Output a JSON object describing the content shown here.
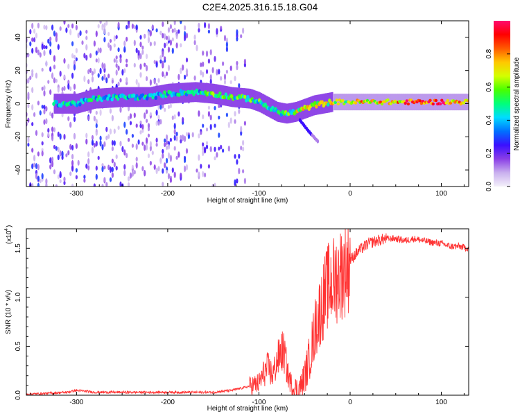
{
  "title": "C2E4.2025.316.15.18.G04",
  "chart_data": [
    {
      "type": "heatmap",
      "name": "spectrogram",
      "xlabel": "Height of straight line (km)",
      "ylabel": "Frequency (Hz)",
      "xlim": [
        -355,
        130
      ],
      "ylim": [
        -50,
        50
      ],
      "xticks": [
        -300,
        -200,
        -100,
        0,
        100
      ],
      "xtick_labels": [
        "-300",
        "-200",
        "-100",
        "0",
        "100"
      ],
      "yticks": [
        -40,
        -20,
        0,
        20,
        40
      ],
      "ytick_labels": [
        "-40",
        "-20",
        "0",
        "20",
        "40"
      ],
      "main_ridge": {
        "x": [
          -320,
          -300,
          -280,
          -250,
          -220,
          -200,
          -170,
          -150,
          -130,
          -110,
          -100,
          -90,
          -80,
          -70,
          -60,
          -50,
          -40,
          -30,
          -20,
          -10,
          0,
          20,
          40,
          60,
          80,
          100,
          120,
          130
        ],
        "y": [
          0,
          0,
          3,
          4,
          4,
          6,
          7,
          6,
          4,
          3,
          1,
          -2,
          -5,
          -6,
          -5,
          -3,
          -1,
          0,
          1,
          1,
          1,
          1,
          1,
          1,
          1,
          1,
          1,
          1
        ]
      },
      "secondary_branch": {
        "x": [
          -55,
          -45,
          -35
        ],
        "y": [
          -10,
          -17,
          -23
        ]
      },
      "colorbar": {
        "label": "Normalized spectral amplitude",
        "range": [
          0,
          1
        ],
        "ticks": [
          0.0,
          0.2,
          0.4,
          0.6,
          0.8
        ],
        "tick_labels": [
          "0.0",
          "0.2",
          "0.4",
          "0.6",
          "0.8"
        ],
        "colormap": [
          "#f4f0fa",
          "#c9b0ee",
          "#8a3ee6",
          "#3a10ff",
          "#0070ff",
          "#00dcff",
          "#00ff7a",
          "#48ff00",
          "#d4ff00",
          "#ffc800",
          "#ff5a00",
          "#ff0000",
          "#ff0a6e"
        ]
      }
    },
    {
      "type": "line",
      "name": "snr",
      "xlabel": "Height of straight line (km)",
      "ylabel": "SNR (10 * v/v)",
      "multiplier_label": "(x10",
      "multiplier_exponent": "4",
      "xlim": [
        -355,
        130
      ],
      "ylim": [
        0,
        1.7
      ],
      "xticks": [
        -300,
        -200,
        -100,
        0,
        100
      ],
      "xtick_labels": [
        "-300",
        "-200",
        "-100",
        "0",
        "100"
      ],
      "yticks": [
        0.0,
        0.5,
        1.0,
        1.5
      ],
      "ytick_labels": [
        "0.0",
        "0.5",
        "1.0",
        "1.5"
      ],
      "color": "#ff3333",
      "series": [
        {
          "name": "SNR",
          "x": [
            -355,
            -330,
            -310,
            -300,
            -280,
            -250,
            -220,
            -200,
            -170,
            -150,
            -130,
            -115,
            -100,
            -95,
            -90,
            -85,
            -80,
            -75,
            -72,
            -68,
            -63,
            -58,
            -53,
            -48,
            -43,
            -38,
            -35,
            -30,
            -25,
            -20,
            -15,
            -10,
            -5,
            0,
            10,
            20,
            30,
            40,
            50,
            60,
            70,
            80,
            90,
            100,
            110,
            120,
            130
          ],
          "y": [
            0.01,
            0.02,
            0.03,
            0.05,
            0.03,
            0.03,
            0.03,
            0.03,
            0.03,
            0.03,
            0.05,
            0.08,
            0.12,
            0.22,
            0.28,
            0.2,
            0.35,
            0.45,
            0.42,
            0.2,
            0.08,
            0.05,
            0.1,
            0.25,
            0.45,
            0.7,
            0.8,
            0.95,
            1.1,
            1.15,
            1.2,
            1.25,
            1.3,
            1.38,
            1.48,
            1.55,
            1.58,
            1.6,
            1.6,
            1.58,
            1.6,
            1.58,
            1.56,
            1.55,
            1.52,
            1.52,
            1.5
          ]
        }
      ]
    }
  ]
}
